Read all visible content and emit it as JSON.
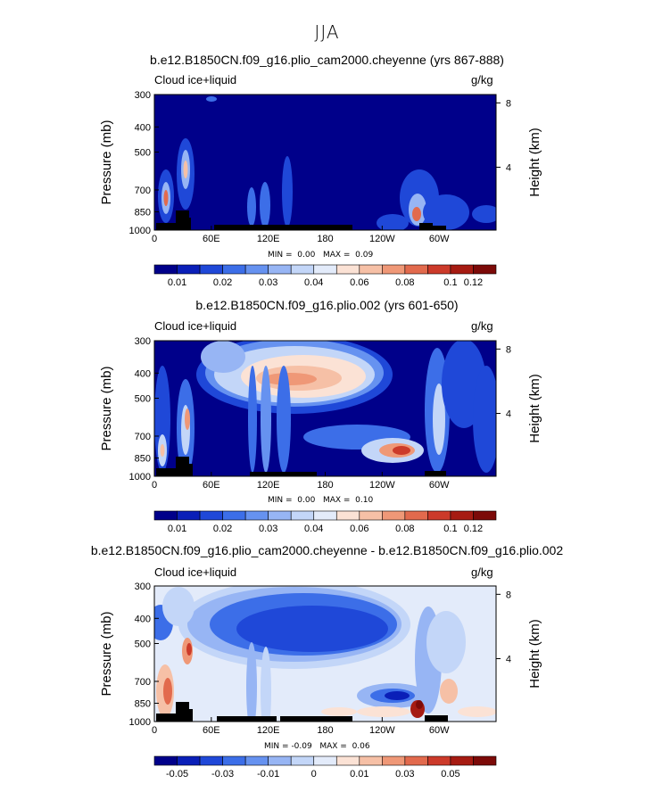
{
  "super_title": "JJA",
  "variable_label": "Cloud ice+liquid",
  "units": "g/kg",
  "y_axis_label": "Pressure (mb)",
  "y2_axis_label": "Height (km)",
  "y_ticks": [
    "300",
    "400",
    "500",
    "700",
    "850",
    "1000"
  ],
  "x_ticks": [
    "0",
    "60E",
    "120E",
    "180",
    "120W",
    "60W"
  ],
  "height_ticks": [
    "8",
    "4"
  ],
  "panels": [
    {
      "title": "b.e12.B1850CN.f09_g16.plio_cam2000.cheyenne (yrs 867-888)",
      "min_label": "MIN =",
      "min_value": "0.00",
      "max_label": "MAX =",
      "max_value": "0.09",
      "colorbar_labels": [
        "0.01",
        "0.02",
        "0.03",
        "0.04",
        "0.06",
        "0.08",
        "0.1",
        "0.12"
      ]
    },
    {
      "title": "b.e12.B1850CN.f09_g16.plio.002 (yrs 601-650)",
      "min_label": "MIN =",
      "min_value": "0.00",
      "max_label": "MAX =",
      "max_value": "0.10",
      "colorbar_labels": [
        "0.01",
        "0.02",
        "0.03",
        "0.04",
        "0.06",
        "0.08",
        "0.1",
        "0.12"
      ]
    },
    {
      "title": "b.e12.B1850CN.f09_g16.plio_cam2000.cheyenne - b.e12.B1850CN.f09_g16.plio.002",
      "min_label": "MIN =",
      "min_value": "-0.09",
      "max_label": "MAX =",
      "max_value": "0.06",
      "colorbar_labels": [
        "-0.05",
        "-0.03",
        "-0.01",
        "0",
        "0.01",
        "0.03",
        "0.05"
      ]
    }
  ],
  "chart_data": [
    {
      "type": "heatmap",
      "title": "b.e12.B1850CN.f09_g16.plio_cam2000.cheyenne (yrs 867-888)",
      "x": "longitude",
      "xticks": [
        "0",
        "60E",
        "120E",
        "180",
        "120W",
        "60W"
      ],
      "yticks": [
        "300",
        "400",
        "500",
        "700",
        "850",
        "1000"
      ],
      "ylabel": "Pressure (mb)",
      "y2label": "Height (km)",
      "min": 0.0,
      "max": 0.09,
      "levels": [
        0.01,
        0.02,
        0.03,
        0.04,
        0.06,
        0.08,
        0.1,
        0.12
      ],
      "colors": [
        "#00008a",
        "#0a1fb8",
        "#1f48d8",
        "#3c6ee8",
        "#6692f0",
        "#97b5f4",
        "#c3d6f8",
        "#e3ebfa",
        "#fbe2d5",
        "#f6c0a6",
        "#ef9877",
        "#e26a4d",
        "#cc3a2a",
        "#a61b12",
        "#7c0a08"
      ]
    },
    {
      "type": "heatmap",
      "title": "b.e12.B1850CN.f09_g16.plio.002 (yrs 601-650)",
      "x": "longitude",
      "xticks": [
        "0",
        "60E",
        "120E",
        "180",
        "120W",
        "60W"
      ],
      "yticks": [
        "300",
        "400",
        "500",
        "700",
        "850",
        "1000"
      ],
      "ylabel": "Pressure (mb)",
      "y2label": "Height (km)",
      "min": 0.0,
      "max": 0.1,
      "levels": [
        0.01,
        0.02,
        0.03,
        0.04,
        0.06,
        0.08,
        0.1,
        0.12
      ],
      "colors": [
        "#00008a",
        "#0a1fb8",
        "#1f48d8",
        "#3c6ee8",
        "#6692f0",
        "#97b5f4",
        "#c3d6f8",
        "#e3ebfa",
        "#fbe2d5",
        "#f6c0a6",
        "#ef9877",
        "#e26a4d",
        "#cc3a2a",
        "#a61b12",
        "#7c0a08"
      ]
    },
    {
      "type": "heatmap",
      "title": "b.e12.B1850CN.f09_g16.plio_cam2000.cheyenne - b.e12.B1850CN.f09_g16.plio.002",
      "x": "longitude",
      "xticks": [
        "0",
        "60E",
        "120E",
        "180",
        "120W",
        "60W"
      ],
      "yticks": [
        "300",
        "400",
        "500",
        "700",
        "850",
        "1000"
      ],
      "ylabel": "Pressure (mb)",
      "y2label": "Height (km)",
      "min": -0.09,
      "max": 0.06,
      "levels": [
        -0.05,
        -0.03,
        -0.01,
        0,
        0.01,
        0.03,
        0.05
      ],
      "colors": [
        "#00008a",
        "#0a1fb8",
        "#1f48d8",
        "#3c6ee8",
        "#6692f0",
        "#97b5f4",
        "#c3d6f8",
        "#e3ebfa",
        "#fbe2d5",
        "#f6c0a6",
        "#ef9877",
        "#e26a4d",
        "#cc3a2a",
        "#a61b12",
        "#7c0a08"
      ]
    }
  ]
}
